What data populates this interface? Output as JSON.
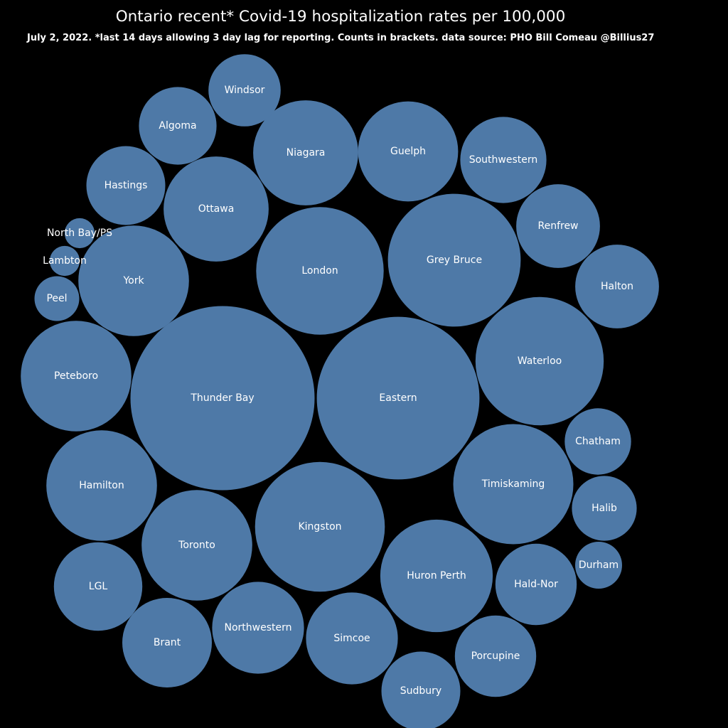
{
  "title": "Ontario recent* Covid-19 hospitalization rates per 100,000",
  "subtitle": "July 2, 2022. *last 14 days allowing 3 day lag for reporting. Counts in brackets. data source: PHO Bill Comeau @Billius27",
  "colors": {
    "background": "#000000",
    "bubble": "#4e79a7",
    "text": "#ffffff"
  },
  "chart_data": {
    "type": "bubble",
    "title": "Ontario recent* Covid-19 hospitalization rates per 100,000",
    "subtitle": "July 2, 2022. *last 14 days allowing 3 day lag for reporting. Counts in brackets. data source: PHO Bill Comeau @Billius27",
    "legend": "none",
    "grid": false,
    "size_measure": "hospitalization rate per 100,000 (relative)",
    "bubbles": [
      {
        "label": "Thunder Bay",
        "value": 16.9
      },
      {
        "label": "Eastern",
        "value": 13.2
      },
      {
        "label": "Waterloo",
        "value": 8.2
      },
      {
        "label": "Grey Bruce",
        "value": 8.8
      },
      {
        "label": "Kingston",
        "value": 8.4
      },
      {
        "label": "London",
        "value": 8.1
      },
      {
        "label": "Timiskaming",
        "value": 7.2
      },
      {
        "label": "Huron Perth",
        "value": 6.3
      },
      {
        "label": "York",
        "value": 6.1
      },
      {
        "label": "Hamilton",
        "value": 6.1
      },
      {
        "label": "Peteboro",
        "value": 6.1
      },
      {
        "label": "Toronto",
        "value": 6.1
      },
      {
        "label": "Ottawa",
        "value": 5.5
      },
      {
        "label": "Niagara",
        "value": 5.5
      },
      {
        "label": "Guelph",
        "value": 5.0
      },
      {
        "label": "Simcoe",
        "value": 4.2
      },
      {
        "label": "Northwestern",
        "value": 4.2
      },
      {
        "label": "LGL",
        "value": 3.9
      },
      {
        "label": "Brant",
        "value": 4.0
      },
      {
        "label": "Halton",
        "value": 3.5
      },
      {
        "label": "Porcupine",
        "value": 3.3
      },
      {
        "label": "Sudbury",
        "value": 3.1
      },
      {
        "label": "Hald-Nor",
        "value": 3.3
      },
      {
        "label": "Southwestern",
        "value": 3.7
      },
      {
        "label": "Renfrew",
        "value": 3.5
      },
      {
        "label": "Hastings",
        "value": 3.1
      },
      {
        "label": "Algoma",
        "value": 3.0
      },
      {
        "label": "Windsor",
        "value": 2.6
      },
      {
        "label": "Chatham",
        "value": 2.2
      },
      {
        "label": "Halib",
        "value": 2.1
      },
      {
        "label": "Durham",
        "value": 1.1
      },
      {
        "label": "Peel",
        "value": 1.0
      },
      {
        "label": "Lambton",
        "value": 0.45
      },
      {
        "label": "North Bay/PS",
        "value": 0.45
      }
    ]
  }
}
